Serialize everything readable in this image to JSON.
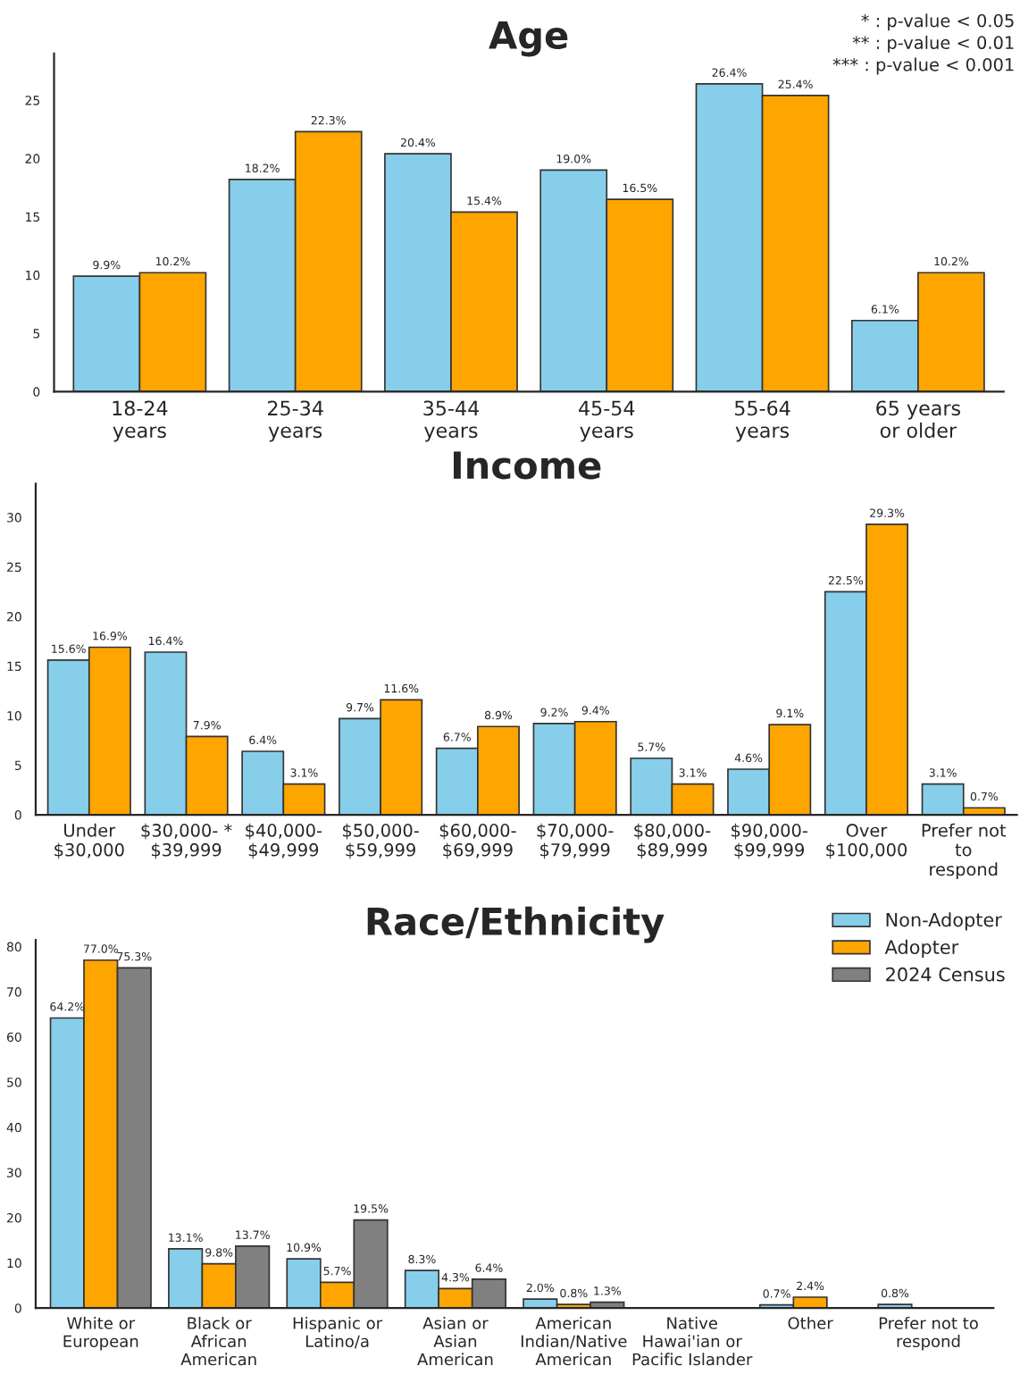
{
  "chart_data": [
    {
      "type": "bar",
      "title": "Age",
      "categories": [
        "18-24\nyears",
        "25-34\nyears",
        "35-44\nyears",
        "45-54\nyears",
        "55-64\nyears",
        "65 years\nor older"
      ],
      "series": [
        {
          "color": "#87ceeb",
          "values": [
            9.9,
            18.2,
            20.4,
            19.0,
            26.4,
            6.1
          ],
          "value_labels": [
            "9.9%",
            "18.2%",
            "20.4%",
            "19.0%",
            "26.4%",
            "6.1%"
          ]
        },
        {
          "color": "#ffa500",
          "values": [
            10.2,
            22.3,
            15.4,
            16.5,
            25.4,
            10.2
          ],
          "value_labels": [
            "10.2%",
            "22.3%",
            "15.4%",
            "16.5%",
            "25.4%",
            "10.2%"
          ]
        }
      ],
      "ylim": [
        0,
        29
      ],
      "yticks": [
        0,
        5,
        10,
        15,
        20,
        25
      ],
      "grid": false,
      "legend": false,
      "annotations": [
        "* : p-value < 0.05",
        "** : p-value < 0.01",
        "*** : p-value < 0.001"
      ]
    },
    {
      "type": "bar",
      "title": "Income",
      "categories": [
        "Under\n$30,000",
        "$30,000- *\n$39,999",
        "$40,000-\n$49,999",
        "$50,000-\n$59,999",
        "$60,000-\n$69,999",
        "$70,000-\n$79,999",
        "$80,000-\n$89,999",
        "$90,000-\n$99,999",
        "Over\n$100,000",
        "Prefer not\nto\nrespond"
      ],
      "series": [
        {
          "color": "#87ceeb",
          "values": [
            15.6,
            16.4,
            6.4,
            9.7,
            6.7,
            9.2,
            5.7,
            4.6,
            22.5,
            3.1
          ],
          "value_labels": [
            "15.6%",
            "16.4%",
            "6.4%",
            "9.7%",
            "6.7%",
            "9.2%",
            "5.7%",
            "4.6%",
            "22.5%",
            "3.1%"
          ]
        },
        {
          "color": "#ffa500",
          "values": [
            16.9,
            7.9,
            3.1,
            11.6,
            8.9,
            9.4,
            3.1,
            9.1,
            29.3,
            0.7
          ],
          "value_labels": [
            "16.9%",
            "7.9%",
            "3.1%",
            "11.6%",
            "8.9%",
            "9.4%",
            "3.1%",
            "9.1%",
            "29.3%",
            "0.7%"
          ]
        }
      ],
      "ylim": [
        0,
        33.4
      ],
      "yticks": [
        0,
        5,
        10,
        15,
        20,
        25,
        30
      ],
      "grid": false,
      "legend": false
    },
    {
      "type": "bar",
      "title": "Race/Ethnicity",
      "categories": [
        "White or\nEuropean",
        "Black or\nAfrican\nAmerican",
        "Hispanic or\nLatino/a",
        "Asian or\nAsian\nAmerican",
        "American\nIndian/Native\nAmerican",
        "Native\nHawai'ian or\nPacific Islander",
        "Other",
        "Prefer not to\nrespond"
      ],
      "series": [
        {
          "name": "Non-Adopter",
          "color": "#87ceeb",
          "values": [
            64.2,
            13.1,
            10.9,
            8.3,
            2.0,
            null,
            0.7,
            0.8
          ],
          "value_labels": [
            "64.2%",
            "13.1%",
            "10.9%",
            "8.3%",
            "2.0%",
            null,
            "0.7%",
            "0.8%"
          ]
        },
        {
          "name": "Adopter",
          "color": "#ffa500",
          "values": [
            77.0,
            9.8,
            5.7,
            4.3,
            0.8,
            null,
            2.4,
            null
          ],
          "value_labels": [
            "77.0%",
            "9.8%",
            "5.7%",
            "4.3%",
            "0.8%",
            null,
            "2.4%",
            null
          ]
        },
        {
          "name": "2024 Census",
          "color": "#808080",
          "values": [
            75.3,
            13.7,
            19.5,
            6.4,
            1.3,
            null,
            null,
            null
          ],
          "value_labels": [
            "75.3%",
            "13.7%",
            "19.5%",
            "6.4%",
            "1.3%",
            null,
            null,
            null
          ]
        }
      ],
      "ylim": [
        0,
        81.5
      ],
      "yticks": [
        0,
        10,
        20,
        30,
        40,
        50,
        60,
        70,
        80
      ],
      "grid": false,
      "legend": "top right"
    }
  ]
}
